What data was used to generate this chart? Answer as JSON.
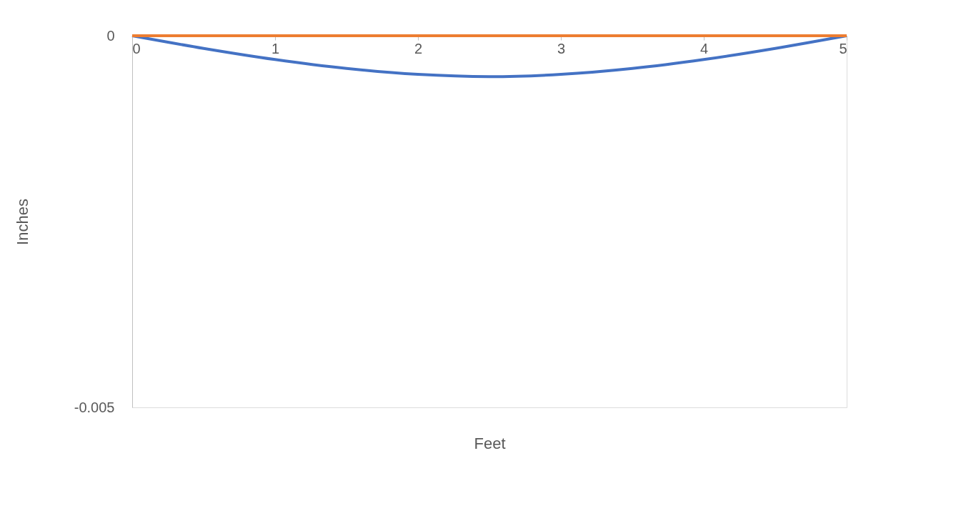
{
  "chart_data": {
    "type": "line",
    "xlabel": "Feet",
    "ylabel": "Inches",
    "x": [
      0,
      0.5,
      1,
      1.5,
      2,
      2.5,
      3,
      3.5,
      4,
      4.5,
      5
    ],
    "series": [
      {
        "color": "#4472c4",
        "values": [
          0,
          -0.00017,
          -0.00032,
          -0.00044,
          -0.00052,
          -0.00055,
          -0.00052,
          -0.00044,
          -0.00032,
          -0.00017,
          0
        ]
      },
      {
        "color": "#ed7d31",
        "values": [
          0,
          0,
          0,
          0,
          0,
          0,
          0,
          0,
          0,
          0,
          0
        ]
      }
    ],
    "xlim": [
      0,
      5
    ],
    "xticks": [
      0,
      1,
      2,
      3,
      4,
      5
    ],
    "ylim": [
      -0.005,
      0
    ],
    "yticks": [
      0,
      -0.005
    ],
    "grid": false,
    "legend": false,
    "marker": "none",
    "line_style": "solid"
  }
}
